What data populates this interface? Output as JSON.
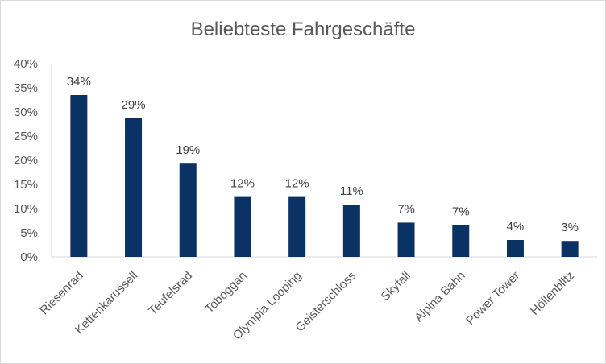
{
  "chart_data": {
    "type": "bar",
    "title": "Beliebteste Fahrgeschäfte",
    "xlabel": "",
    "ylabel": "",
    "categories": [
      "Riesenrad",
      "Kettenkarussell",
      "Teufelsrad",
      "Toboggan",
      "Olympia Looping",
      "Geisterschloss",
      "Skyfall",
      "Alpina Bahn",
      "Power Tower",
      "Höllenblitz"
    ],
    "values": [
      33.5,
      28.7,
      19.3,
      12.4,
      12.4,
      10.8,
      7.1,
      6.6,
      3.5,
      3.3
    ],
    "data_labels": [
      "34%",
      "29%",
      "19%",
      "12%",
      "12%",
      "11%",
      "7%",
      "7%",
      "4%",
      "3%"
    ],
    "ylim": [
      0,
      40
    ],
    "yticks": [
      0,
      5,
      10,
      15,
      20,
      25,
      30,
      35,
      40
    ],
    "ytick_labels": [
      "0%",
      "5%",
      "10%",
      "15%",
      "20%",
      "25%",
      "30%",
      "35%",
      "40%"
    ],
    "grid": false,
    "legend": "none",
    "bar_color": "#0b3264",
    "axis_color": "#d9d9d9"
  }
}
